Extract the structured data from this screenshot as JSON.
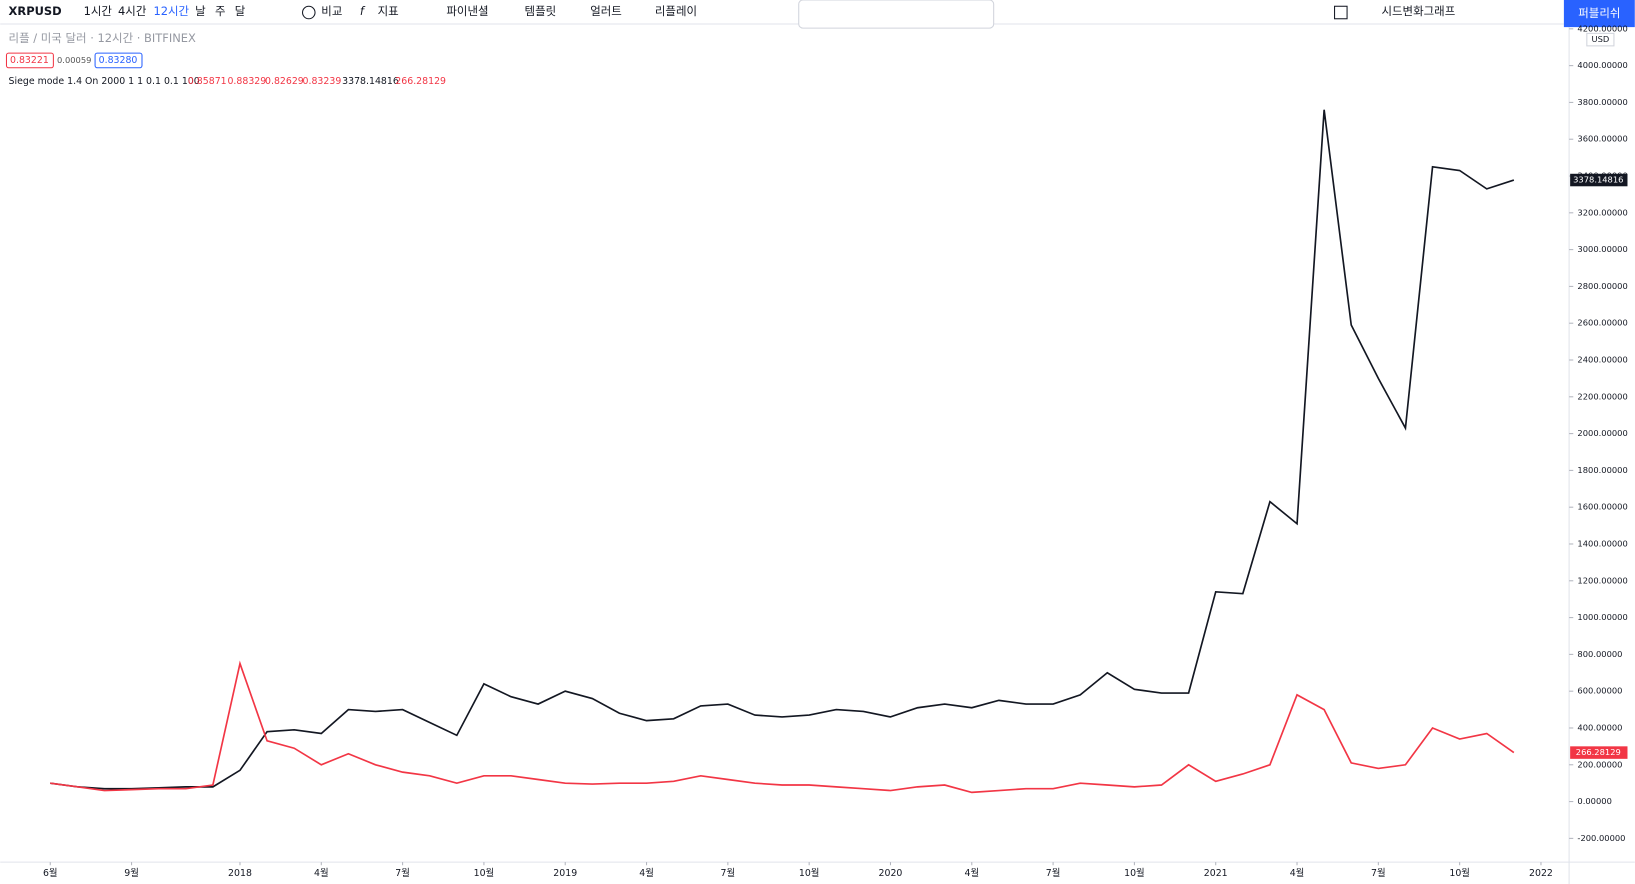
{
  "toolbar": {
    "symbol": "XRPUSD",
    "intervals": [
      "1시간",
      "4시간",
      "12시간",
      "날",
      "주",
      "달"
    ],
    "buttons": [
      "비교",
      "지표",
      "파이낸셜",
      "템플릿",
      "얼러트",
      "리플레이"
    ],
    "layout": "시드변화그래프",
    "publish": "퍼블리쉬"
  },
  "legend": {
    "instrument": "리플 / 미국 달러 · 12시간 · BITFINEX",
    "bid": "0.83221",
    "spread": "0.00059",
    "ask": "0.83280",
    "indicator": "Siege mode 1.4 On 2000 1 1 0.1 0.1 100",
    "indicator_values": [
      "0.85871",
      "0.88329",
      "0.82629",
      "0.83239"
    ]
  },
  "currency": "USD",
  "chart_data": {
    "type": "line",
    "categories": [
      "6월",
      null,
      null,
      "9월",
      null,
      null,
      null,
      "2018",
      null,
      null,
      "4월",
      null,
      null,
      "7월",
      null,
      null,
      "10월",
      null,
      null,
      "2019",
      null,
      null,
      "4월",
      null,
      null,
      "7월",
      null,
      null,
      "10월",
      null,
      null,
      "2020",
      null,
      null,
      "4월",
      null,
      null,
      "7월",
      null,
      null,
      "10월",
      null,
      null,
      "2021",
      null,
      null,
      "4월",
      null,
      null,
      "7월",
      null,
      null,
      "10월",
      null,
      null,
      "2022"
    ],
    "series": [
      {
        "name": "Siege mode",
        "color": "#131722",
        "values": [
          100,
          80,
          70,
          70,
          75,
          80,
          80,
          170,
          380,
          390,
          370,
          500,
          490,
          500,
          430,
          360,
          640,
          570,
          530,
          600,
          560,
          480,
          440,
          450,
          520,
          530,
          470,
          460,
          470,
          500,
          490,
          460,
          510,
          530,
          510,
          550,
          530,
          530,
          580,
          700,
          610,
          590,
          590,
          1140,
          1130,
          1630,
          1510,
          3760,
          2590,
          2300,
          2030,
          3450,
          3430,
          3330,
          3378.14816,
          null
        ]
      },
      {
        "name": "XRPUSD",
        "color": "#f23645",
        "values": [
          100,
          80,
          60,
          65,
          70,
          70,
          90,
          750,
          330,
          290,
          200,
          260,
          200,
          160,
          140,
          100,
          140,
          140,
          120,
          100,
          95,
          100,
          100,
          110,
          140,
          120,
          100,
          90,
          90,
          80,
          70,
          60,
          80,
          90,
          50,
          60,
          70,
          70,
          100,
          90,
          80,
          90,
          200,
          110,
          150,
          200,
          580,
          500,
          210,
          180,
          200,
          400,
          340,
          370,
          266.28129,
          null
        ]
      }
    ],
    "ylim": [
      -329,
      4232
    ],
    "yticks": [
      {
        "value": -200,
        "label": "-200.00000"
      },
      {
        "value": 0,
        "label": "0.00000"
      },
      {
        "value": 200,
        "label": "200.00000"
      },
      {
        "value": 400,
        "label": "400.00000"
      },
      {
        "value": 600,
        "label": "600.00000"
      },
      {
        "value": 800,
        "label": "800.00000"
      },
      {
        "value": 1000,
        "label": "1000.00000"
      },
      {
        "value": 1200,
        "label": "1200.00000"
      },
      {
        "value": 1400,
        "label": "1400.00000"
      },
      {
        "value": 1600,
        "label": "1600.00000"
      },
      {
        "value": 1800,
        "label": "1800.00000"
      },
      {
        "value": 2000,
        "label": "2000.00000"
      },
      {
        "value": 2200,
        "label": "2200.00000"
      },
      {
        "value": 2400,
        "label": "2400.00000"
      },
      {
        "value": 2600,
        "label": "2600.00000"
      },
      {
        "value": 2800,
        "label": "2800.00000"
      },
      {
        "value": 3000,
        "label": "3000.00000"
      },
      {
        "value": 3200,
        "label": "3200.00000"
      },
      {
        "value": 3400,
        "label": "3400.00000"
      },
      {
        "value": 3600,
        "label": "3600.00000"
      },
      {
        "value": 3800,
        "label": "3800.00000"
      },
      {
        "value": 4000,
        "label": "4000.00000"
      },
      {
        "value": 4200,
        "label": "4200.00000"
      }
    ],
    "grid": false
  }
}
